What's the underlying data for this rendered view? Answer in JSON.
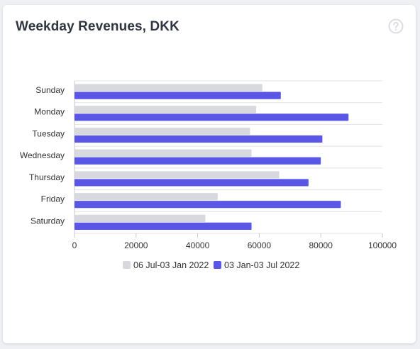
{
  "card": {
    "title": "Weekday Revenues, DKK"
  },
  "icons": {
    "help": "question-circle-icon"
  },
  "colors": {
    "previous": "#d8d8df",
    "current": "#5a57e6",
    "grid": "#e3e3e3",
    "axis": "#c9c9c9"
  },
  "chart_data": {
    "type": "bar",
    "orientation": "horizontal",
    "title": "Weekday Revenues, DKK",
    "categories": [
      "Sunday",
      "Monday",
      "Tuesday",
      "Wednesday",
      "Thursday",
      "Friday",
      "Saturday"
    ],
    "series": [
      {
        "name": "06 Jul-03 Jan 2022",
        "values": [
          61000,
          59000,
          57000,
          57500,
          66500,
          46500,
          42500
        ]
      },
      {
        "name": "03 Jan-03 Jul 2022",
        "values": [
          67000,
          89000,
          80500,
          80000,
          76000,
          86500,
          57500
        ]
      }
    ],
    "xlim": [
      0,
      100000
    ],
    "xticks": [
      "0",
      "20000",
      "40000",
      "60000",
      "80000",
      "100000"
    ],
    "grid": true,
    "legend": "bottom"
  }
}
